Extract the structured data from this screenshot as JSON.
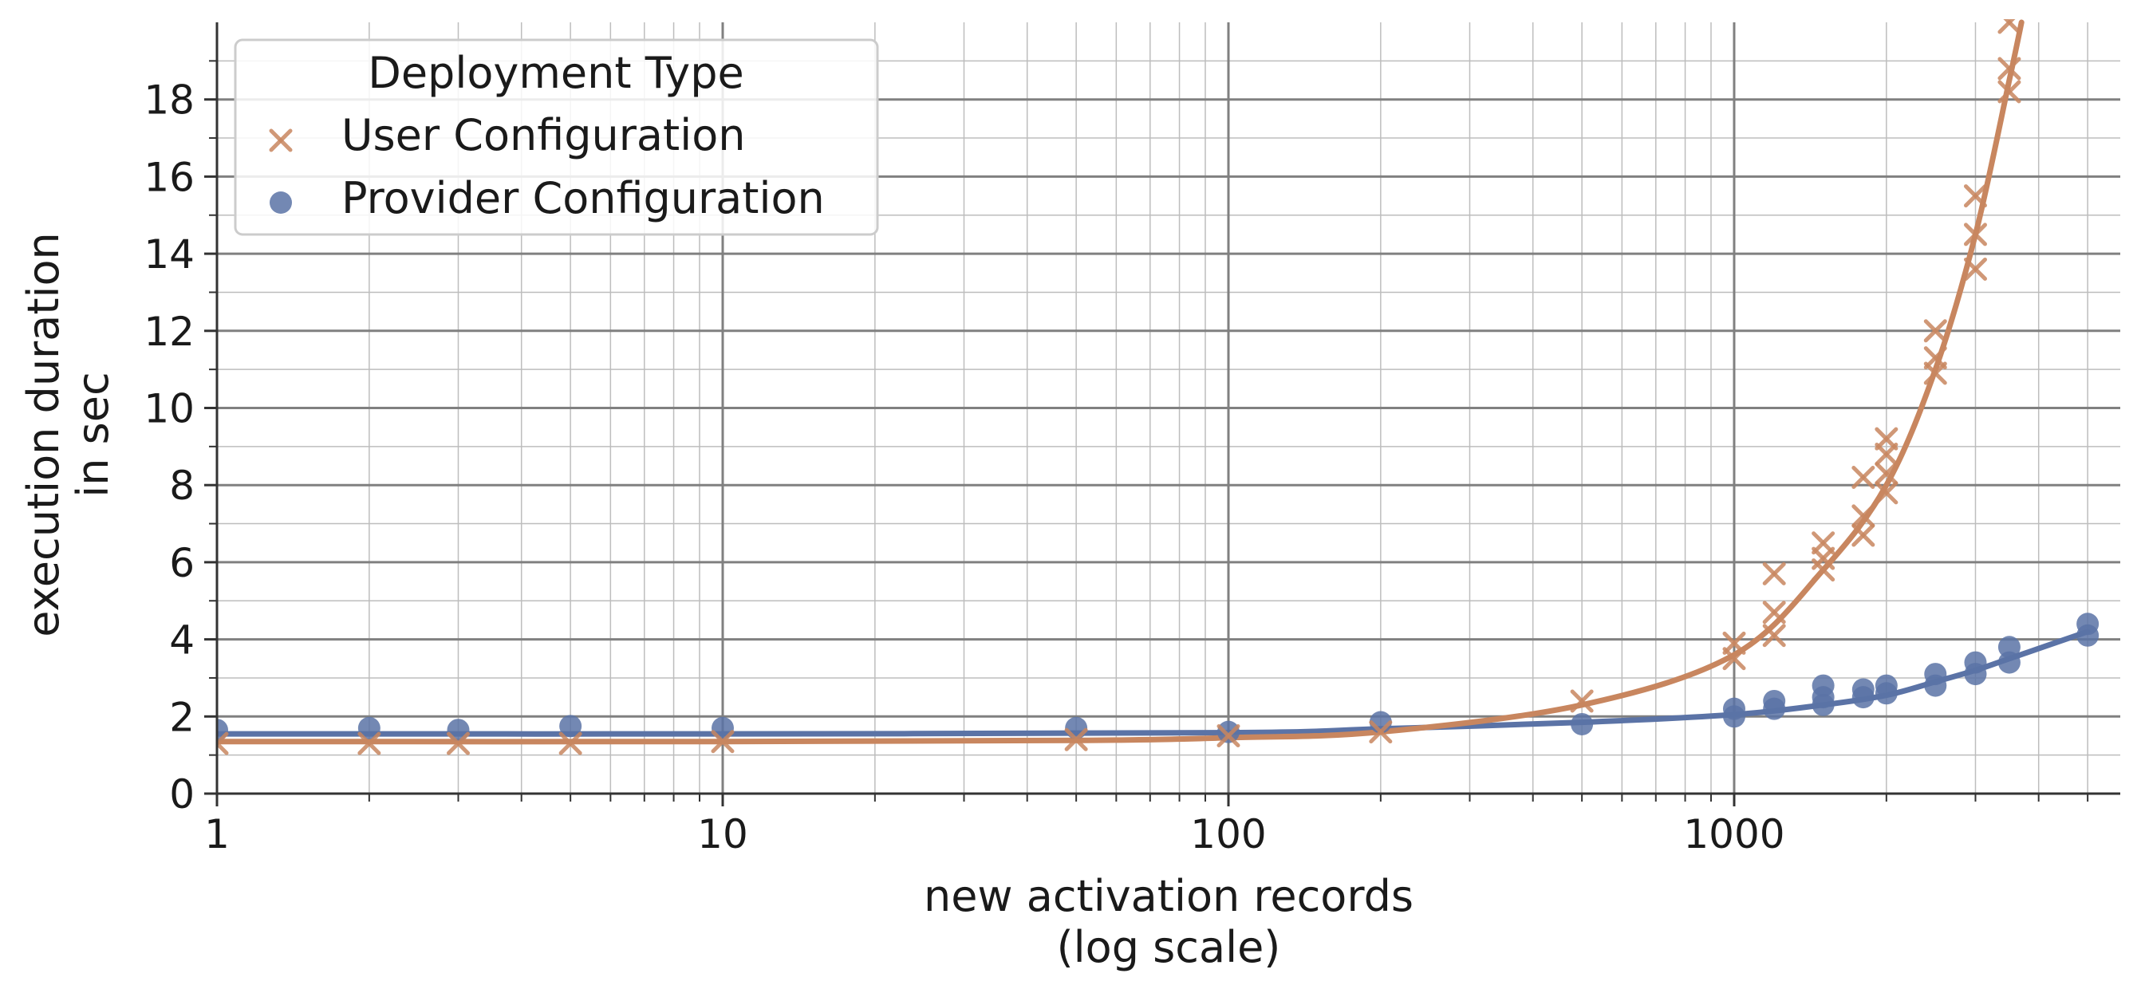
{
  "chart_data": {
    "type": "scatter",
    "title": "",
    "xlabel": [
      "new activation records",
      "(log scale)"
    ],
    "ylabel": [
      "execution duration",
      "in sec"
    ],
    "xscale": "log",
    "xlim": [
      1,
      5800
    ],
    "ylim": [
      0,
      20
    ],
    "x_ticks": [
      1,
      10,
      100,
      1000
    ],
    "x_tick_labels": [
      "1",
      "10",
      "100",
      "1000"
    ],
    "y_ticks": [
      0,
      2,
      4,
      6,
      8,
      10,
      12,
      14,
      16,
      18
    ],
    "y_tick_labels": [
      "0",
      "2",
      "4",
      "6",
      "8",
      "10",
      "12",
      "14",
      "16",
      "18"
    ],
    "grid": true,
    "legend": {
      "title": "Deployment Type",
      "placement": "top-left",
      "entries": [
        "User Configuration",
        "Provider Configuration"
      ]
    },
    "series": [
      {
        "name": "User Configuration",
        "marker": "x",
        "color": "#c8865f",
        "x": [
          1,
          2,
          3,
          5,
          10,
          50,
          100,
          200,
          500,
          1000,
          1000,
          1200,
          1200,
          1200,
          1500,
          1500,
          1500,
          1800,
          1800,
          1800,
          2000,
          2000,
          2000,
          2000,
          2500,
          2500,
          2500,
          3000,
          3000,
          3000,
          3500,
          3500,
          3500
        ],
        "y": [
          1.3,
          1.3,
          1.3,
          1.3,
          1.35,
          1.4,
          1.5,
          1.6,
          2.4,
          3.5,
          3.9,
          4.1,
          4.7,
          5.7,
          5.8,
          6.1,
          6.5,
          6.7,
          7.2,
          8.2,
          7.8,
          8.3,
          8.8,
          9.2,
          10.9,
          11.3,
          12.0,
          13.6,
          14.5,
          15.5,
          18.2,
          18.8,
          20.0
        ],
        "fit": {
          "x": [
            1,
            10,
            50,
            100,
            200,
            500,
            1000,
            1500,
            2000,
            2500,
            3000,
            3500,
            3700
          ],
          "y": [
            1.35,
            1.35,
            1.38,
            1.45,
            1.6,
            2.3,
            3.6,
            5.8,
            8.0,
            11.0,
            14.5,
            18.5,
            20.0
          ]
        }
      },
      {
        "name": "Provider Configuration",
        "marker": "o",
        "color": "#5b73a6",
        "x": [
          1,
          2,
          3,
          5,
          10,
          50,
          100,
          200,
          500,
          1000,
          1000,
          1200,
          1200,
          1500,
          1500,
          1500,
          1800,
          1800,
          2000,
          2000,
          2500,
          2500,
          3000,
          3000,
          3500,
          3500,
          5000,
          5000
        ],
        "y": [
          1.65,
          1.7,
          1.65,
          1.75,
          1.7,
          1.7,
          1.6,
          1.85,
          1.8,
          2.0,
          2.2,
          2.2,
          2.4,
          2.3,
          2.5,
          2.8,
          2.5,
          2.7,
          2.6,
          2.8,
          2.8,
          3.1,
          3.1,
          3.4,
          3.4,
          3.8,
          4.1,
          4.4
        ],
        "fit": {
          "x": [
            1,
            10,
            100,
            200,
            500,
            1000,
            1500,
            2000,
            2500,
            3000,
            3500,
            5000
          ],
          "y": [
            1.55,
            1.55,
            1.58,
            1.68,
            1.85,
            2.05,
            2.3,
            2.55,
            2.9,
            3.2,
            3.5,
            4.2
          ]
        }
      }
    ]
  }
}
